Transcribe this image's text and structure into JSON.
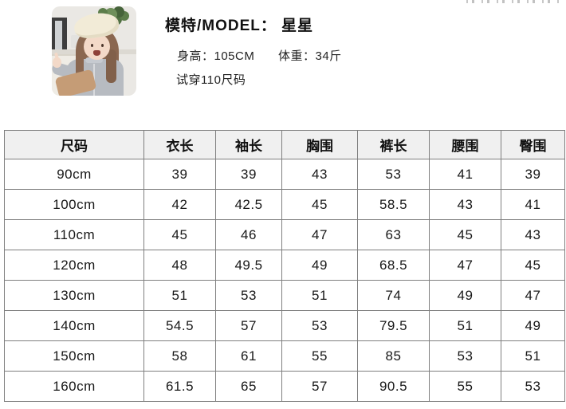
{
  "model_info": {
    "photo_alt": "child model wearing cream beret and grey zip cardigan, thumbs up, kitchen background",
    "title": "模特/MODEL： 星星",
    "height_text": "身高：105CM",
    "weight_text": "体重：34斤",
    "fit_note": "试穿110尺码"
  },
  "size_table": {
    "columns": [
      "尺码",
      "衣长",
      "袖长",
      "胸围",
      "裤长",
      "腰围",
      "臀围"
    ],
    "rows": [
      [
        "90cm",
        "39",
        "39",
        "43",
        "53",
        "41",
        "39"
      ],
      [
        "100cm",
        "42",
        "42.5",
        "45",
        "58.5",
        "43",
        "41"
      ],
      [
        "110cm",
        "45",
        "46",
        "47",
        "63",
        "45",
        "43"
      ],
      [
        "120cm",
        "48",
        "49.5",
        "49",
        "68.5",
        "47",
        "45"
      ],
      [
        "130cm",
        "51",
        "53",
        "51",
        "74",
        "49",
        "47"
      ],
      [
        "140cm",
        "54.5",
        "57",
        "53",
        "79.5",
        "51",
        "49"
      ],
      [
        "150cm",
        "58",
        "61",
        "55",
        "85",
        "53",
        "51"
      ],
      [
        "160cm",
        "61.5",
        "65",
        "57",
        "90.5",
        "55",
        "53"
      ]
    ]
  },
  "colors": {
    "header_bg": "#f0f0f0",
    "table_border": "#7f7f7f",
    "text": "#1a1a1a",
    "beret": "#f2ebd7",
    "cardigan_grey": "#b7bbc1"
  }
}
